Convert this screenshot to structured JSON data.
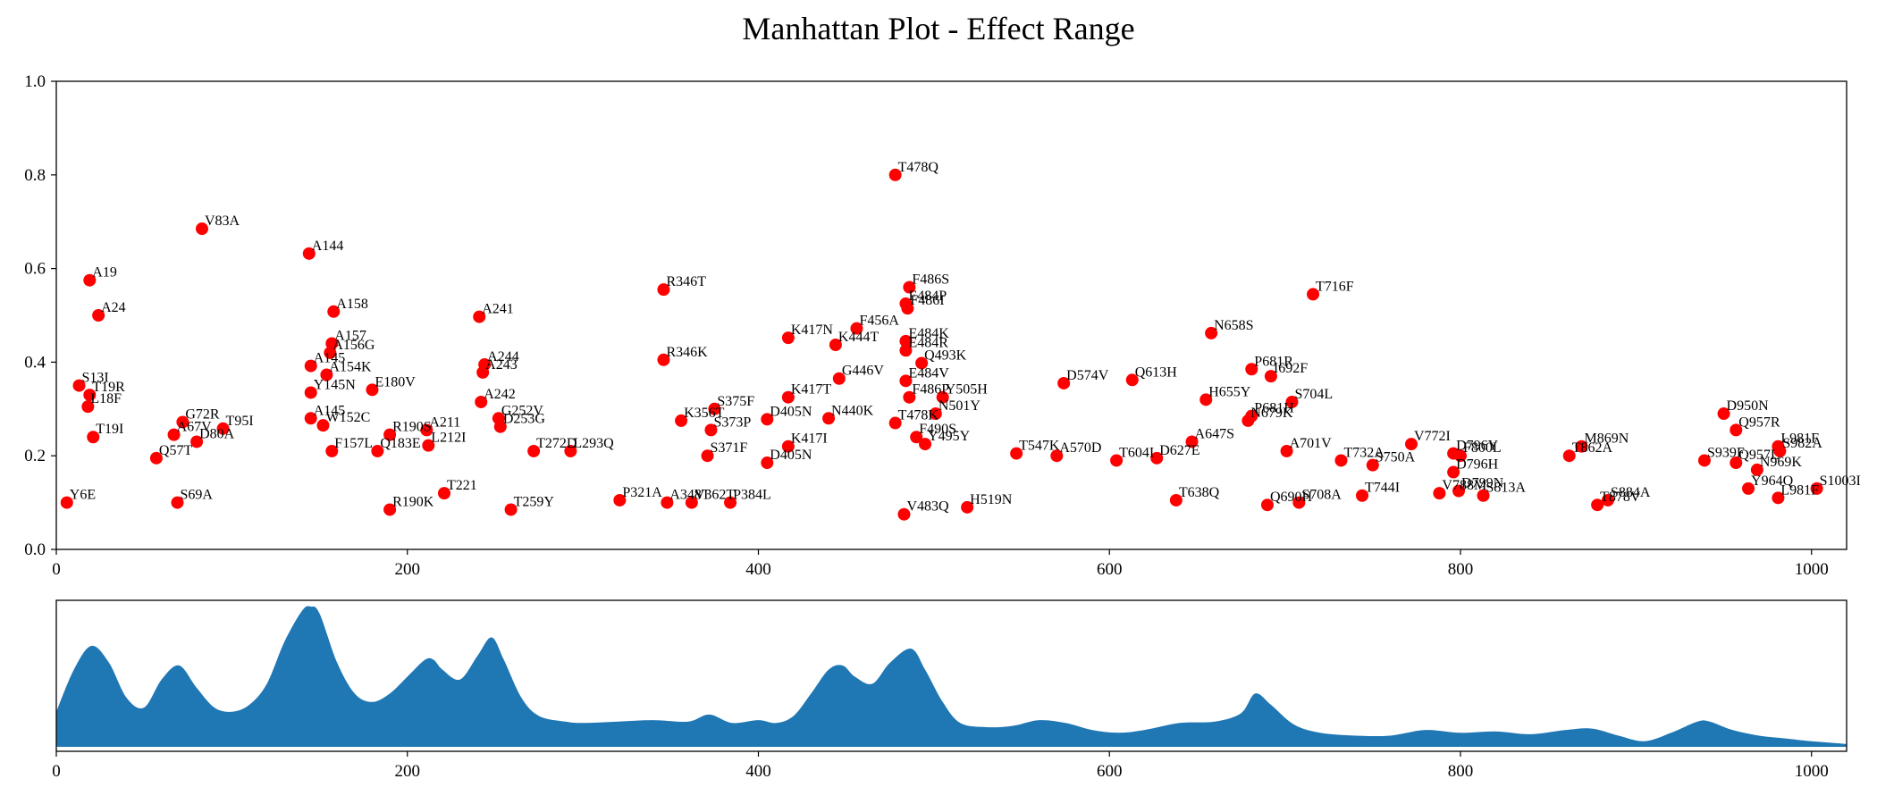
{
  "figure": {
    "title": "Manhattan Plot - Effect Range"
  },
  "chart_data": [
    {
      "type": "scatter",
      "title": "Manhattan Plot - Effect Range",
      "xlabel": "",
      "ylabel": "",
      "xlim": [
        0,
        1020
      ],
      "ylim": [
        0,
        1.0
      ],
      "x_ticks": [
        "0",
        "200",
        "400",
        "600",
        "800",
        "1000"
      ],
      "y_ticks": [
        "0.0",
        "0.2",
        "0.4",
        "0.6",
        "0.8",
        "1.0"
      ],
      "grid": false,
      "marker_color": "#ff0000",
      "points": [
        {
          "x": 478,
          "y": 0.8,
          "label": "T478Q"
        },
        {
          "x": 83,
          "y": 0.685,
          "label": "V83A"
        },
        {
          "x": 144,
          "y": 0.632,
          "label": "A144"
        },
        {
          "x": 19,
          "y": 0.575,
          "label": "A19"
        },
        {
          "x": 486,
          "y": 0.56,
          "label": "F486S"
        },
        {
          "x": 346,
          "y": 0.555,
          "label": "R346T"
        },
        {
          "x": 716,
          "y": 0.545,
          "label": "T716F"
        },
        {
          "x": 484,
          "y": 0.525,
          "label": "E484P"
        },
        {
          "x": 485,
          "y": 0.515,
          "label": "F486I"
        },
        {
          "x": 158,
          "y": 0.508,
          "label": "A158"
        },
        {
          "x": 24,
          "y": 0.5,
          "label": "A24"
        },
        {
          "x": 241,
          "y": 0.497,
          "label": "A241"
        },
        {
          "x": 456,
          "y": 0.472,
          "label": "F456A"
        },
        {
          "x": 658,
          "y": 0.462,
          "label": "N658S"
        },
        {
          "x": 417,
          "y": 0.452,
          "label": "K417N"
        },
        {
          "x": 484,
          "y": 0.445,
          "label": "E484K"
        },
        {
          "x": 444,
          "y": 0.437,
          "label": "K444T"
        },
        {
          "x": 484,
          "y": 0.425,
          "label": "E484R"
        },
        {
          "x": 157,
          "y": 0.44,
          "label": "A157"
        },
        {
          "x": 156,
          "y": 0.42,
          "label": "A156G"
        },
        {
          "x": 346,
          "y": 0.405,
          "label": "R346K"
        },
        {
          "x": 493,
          "y": 0.398,
          "label": "Q493K"
        },
        {
          "x": 244,
          "y": 0.395,
          "label": "A244"
        },
        {
          "x": 145,
          "y": 0.392,
          "label": "A145"
        },
        {
          "x": 681,
          "y": 0.385,
          "label": "P681R"
        },
        {
          "x": 243,
          "y": 0.378,
          "label": "A243"
        },
        {
          "x": 154,
          "y": 0.373,
          "label": "A154K"
        },
        {
          "x": 692,
          "y": 0.37,
          "label": "I692F"
        },
        {
          "x": 446,
          "y": 0.365,
          "label": "G446V"
        },
        {
          "x": 613,
          "y": 0.362,
          "label": "Q613H"
        },
        {
          "x": 574,
          "y": 0.355,
          "label": "D574V"
        },
        {
          "x": 484,
          "y": 0.36,
          "label": "E484V"
        },
        {
          "x": 13,
          "y": 0.35,
          "label": "S13I"
        },
        {
          "x": 180,
          "y": 0.341,
          "label": "E180V"
        },
        {
          "x": 145,
          "y": 0.335,
          "label": "Y145N"
        },
        {
          "x": 417,
          "y": 0.325,
          "label": "K417T"
        },
        {
          "x": 486,
          "y": 0.325,
          "label": "F486P"
        },
        {
          "x": 505,
          "y": 0.325,
          "label": "Y505H"
        },
        {
          "x": 19,
          "y": 0.33,
          "label": "T19R"
        },
        {
          "x": 655,
          "y": 0.32,
          "label": "H655Y"
        },
        {
          "x": 704,
          "y": 0.315,
          "label": "S704L"
        },
        {
          "x": 242,
          "y": 0.315,
          "label": "A242"
        },
        {
          "x": 18,
          "y": 0.305,
          "label": "L18F"
        },
        {
          "x": 375,
          "y": 0.3,
          "label": "S375F"
        },
        {
          "x": 501,
          "y": 0.29,
          "label": "N501Y"
        },
        {
          "x": 950,
          "y": 0.29,
          "label": "D950N"
        },
        {
          "x": 681,
          "y": 0.285,
          "label": "P681H"
        },
        {
          "x": 440,
          "y": 0.28,
          "label": "N440K"
        },
        {
          "x": 405,
          "y": 0.278,
          "label": "D405N"
        },
        {
          "x": 145,
          "y": 0.28,
          "label": "A145"
        },
        {
          "x": 252,
          "y": 0.28,
          "label": "G252V"
        },
        {
          "x": 679,
          "y": 0.275,
          "label": "N679K"
        },
        {
          "x": 356,
          "y": 0.275,
          "label": "K356T"
        },
        {
          "x": 72,
          "y": 0.272,
          "label": "G72R"
        },
        {
          "x": 152,
          "y": 0.265,
          "label": "W152C"
        },
        {
          "x": 253,
          "y": 0.262,
          "label": "D253G"
        },
        {
          "x": 478,
          "y": 0.27,
          "label": "T478K"
        },
        {
          "x": 95,
          "y": 0.258,
          "label": "T95I"
        },
        {
          "x": 373,
          "y": 0.255,
          "label": "S373P"
        },
        {
          "x": 957,
          "y": 0.255,
          "label": "Q957R"
        },
        {
          "x": 211,
          "y": 0.255,
          "label": "A211"
        },
        {
          "x": 67,
          "y": 0.245,
          "label": "A67V"
        },
        {
          "x": 490,
          "y": 0.24,
          "label": "F490S"
        },
        {
          "x": 190,
          "y": 0.245,
          "label": "R190S"
        },
        {
          "x": 21,
          "y": 0.24,
          "label": "T19I"
        },
        {
          "x": 417,
          "y": 0.22,
          "label": "K417I"
        },
        {
          "x": 495,
          "y": 0.225,
          "label": "Y495Y"
        },
        {
          "x": 80,
          "y": 0.23,
          "label": "D80A"
        },
        {
          "x": 647,
          "y": 0.23,
          "label": "A647S"
        },
        {
          "x": 772,
          "y": 0.225,
          "label": "V772I"
        },
        {
          "x": 981,
          "y": 0.22,
          "label": "L981F"
        },
        {
          "x": 982,
          "y": 0.21,
          "label": "S982A"
        },
        {
          "x": 869,
          "y": 0.22,
          "label": "M869N"
        },
        {
          "x": 701,
          "y": 0.21,
          "label": "A701V"
        },
        {
          "x": 293,
          "y": 0.21,
          "label": "L293Q"
        },
        {
          "x": 272,
          "y": 0.21,
          "label": "T272D"
        },
        {
          "x": 547,
          "y": 0.205,
          "label": "T547K"
        },
        {
          "x": 570,
          "y": 0.2,
          "label": "A570D"
        },
        {
          "x": 157,
          "y": 0.21,
          "label": "F157L"
        },
        {
          "x": 183,
          "y": 0.21,
          "label": "Q183E"
        },
        {
          "x": 212,
          "y": 0.222,
          "label": "L212I"
        },
        {
          "x": 627,
          "y": 0.195,
          "label": "D627E"
        },
        {
          "x": 604,
          "y": 0.19,
          "label": "T604I"
        },
        {
          "x": 732,
          "y": 0.19,
          "label": "T732A"
        },
        {
          "x": 796,
          "y": 0.205,
          "label": "D796Y"
        },
        {
          "x": 800,
          "y": 0.2,
          "label": "F800L"
        },
        {
          "x": 57,
          "y": 0.195,
          "label": "Q57T"
        },
        {
          "x": 371,
          "y": 0.2,
          "label": "S371F"
        },
        {
          "x": 405,
          "y": 0.185,
          "label": "D405N"
        },
        {
          "x": 750,
          "y": 0.18,
          "label": "S750A"
        },
        {
          "x": 796,
          "y": 0.165,
          "label": "D796H"
        },
        {
          "x": 957,
          "y": 0.185,
          "label": "Q957L"
        },
        {
          "x": 969,
          "y": 0.17,
          "label": "N969K"
        },
        {
          "x": 519,
          "y": 0.09,
          "label": "H519N"
        },
        {
          "x": 483,
          "y": 0.075,
          "label": "V483Q"
        },
        {
          "x": 348,
          "y": 0.1,
          "label": "A348T"
        },
        {
          "x": 384,
          "y": 0.1,
          "label": "P384L"
        },
        {
          "x": 362,
          "y": 0.1,
          "label": "V362T"
        },
        {
          "x": 321,
          "y": 0.105,
          "label": "P321A"
        },
        {
          "x": 259,
          "y": 0.085,
          "label": "T259Y"
        },
        {
          "x": 190,
          "y": 0.085,
          "label": "R190K"
        },
        {
          "x": 708,
          "y": 0.1,
          "label": "S708A"
        },
        {
          "x": 690,
          "y": 0.095,
          "label": "Q690H"
        },
        {
          "x": 744,
          "y": 0.115,
          "label": "T744I"
        },
        {
          "x": 788,
          "y": 0.12,
          "label": "V788M"
        },
        {
          "x": 813,
          "y": 0.115,
          "label": "S813A"
        },
        {
          "x": 878,
          "y": 0.095,
          "label": "T878V"
        },
        {
          "x": 884,
          "y": 0.105,
          "label": "S884A"
        },
        {
          "x": 981,
          "y": 0.11,
          "label": "L981F"
        },
        {
          "x": 1003,
          "y": 0.13,
          "label": "S1003I"
        },
        {
          "x": 964,
          "y": 0.13,
          "label": "Y964Q"
        },
        {
          "x": 6,
          "y": 0.1,
          "label": "Y6E"
        },
        {
          "x": 69,
          "y": 0.1,
          "label": "S69A"
        },
        {
          "x": 221,
          "y": 0.12,
          "label": "T221"
        },
        {
          "x": 638,
          "y": 0.105,
          "label": "T638Q"
        },
        {
          "x": 799,
          "y": 0.125,
          "label": "D799N"
        },
        {
          "x": 862,
          "y": 0.2,
          "label": "T862A"
        },
        {
          "x": 939,
          "y": 0.19,
          "label": "S939F"
        }
      ]
    },
    {
      "type": "area",
      "title": "",
      "xlabel": "",
      "ylabel": "",
      "xlim": [
        0,
        1020
      ],
      "x_ticks": [
        "0",
        "200",
        "400",
        "600",
        "800",
        "1000"
      ],
      "fill_color": "#1f77b4",
      "x": [
        0,
        10,
        20,
        30,
        40,
        50,
        60,
        70,
        80,
        90,
        100,
        110,
        120,
        130,
        140,
        145,
        150,
        160,
        170,
        180,
        190,
        200,
        210,
        215,
        220,
        230,
        240,
        248,
        255,
        265,
        275,
        290,
        300,
        320,
        340,
        360,
        372,
        385,
        400,
        410,
        420,
        430,
        440,
        448,
        455,
        465,
        475,
        487,
        495,
        505,
        515,
        530,
        545,
        560,
        575,
        590,
        605,
        620,
        640,
        660,
        675,
        683,
        692,
        705,
        720,
        740,
        760,
        780,
        800,
        820,
        840,
        860,
        875,
        890,
        905,
        920,
        935,
        942,
        955,
        970,
        985,
        1000,
        1020
      ],
      "values": [
        0.25,
        0.55,
        0.72,
        0.6,
        0.35,
        0.28,
        0.48,
        0.58,
        0.42,
        0.28,
        0.25,
        0.3,
        0.45,
        0.75,
        0.97,
        1.0,
        0.95,
        0.6,
        0.38,
        0.32,
        0.38,
        0.5,
        0.62,
        0.62,
        0.55,
        0.48,
        0.65,
        0.78,
        0.62,
        0.35,
        0.22,
        0.18,
        0.17,
        0.18,
        0.19,
        0.18,
        0.23,
        0.17,
        0.19,
        0.17,
        0.22,
        0.38,
        0.55,
        0.58,
        0.5,
        0.45,
        0.6,
        0.7,
        0.55,
        0.32,
        0.17,
        0.14,
        0.15,
        0.19,
        0.17,
        0.12,
        0.1,
        0.12,
        0.17,
        0.18,
        0.24,
        0.38,
        0.3,
        0.16,
        0.1,
        0.08,
        0.08,
        0.12,
        0.1,
        0.11,
        0.09,
        0.12,
        0.13,
        0.08,
        0.04,
        0.1,
        0.18,
        0.18,
        0.12,
        0.08,
        0.06,
        0.04,
        0.02
      ]
    }
  ]
}
